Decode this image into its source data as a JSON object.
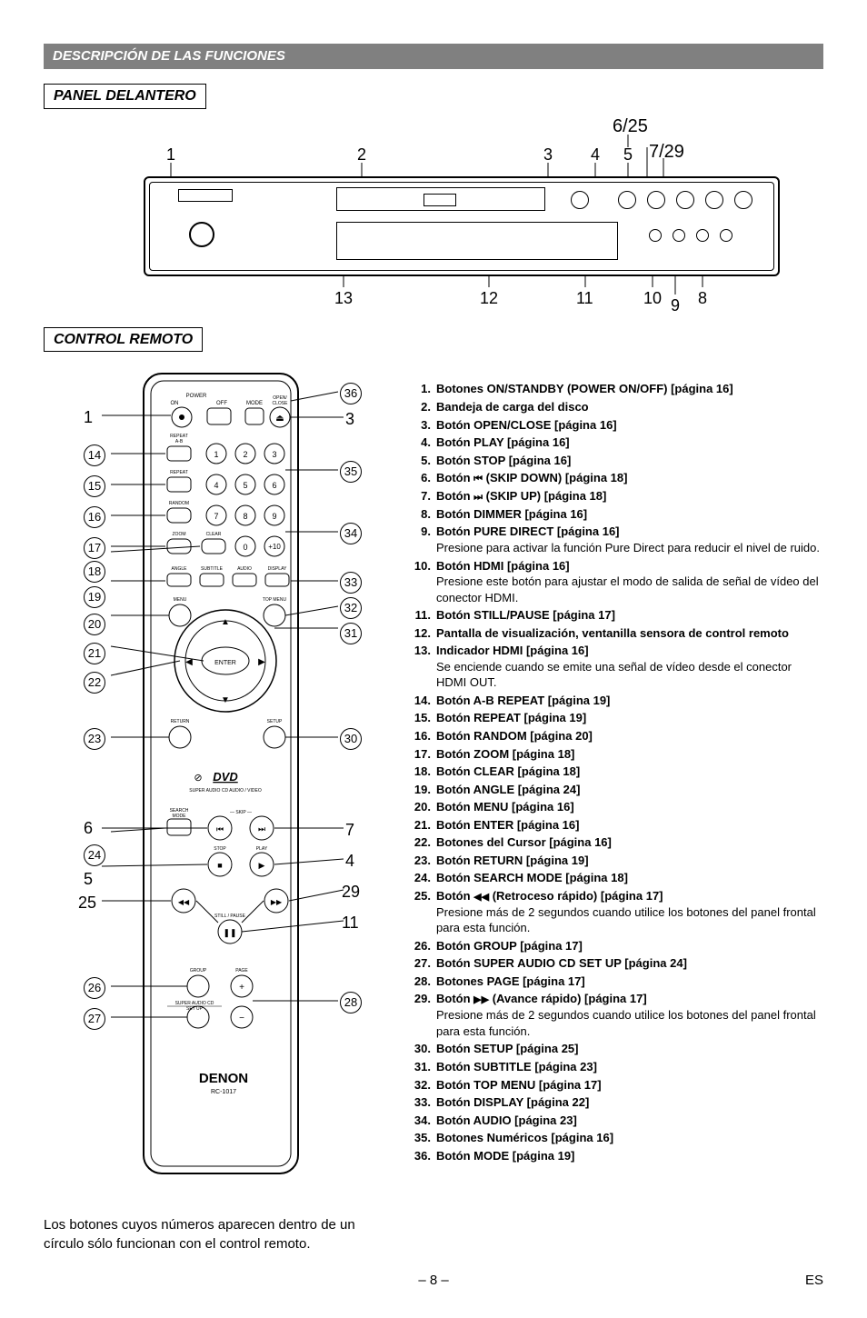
{
  "header": {
    "title": "DESCRIPCIÓN DE LAS FUNCIONES"
  },
  "sections": {
    "front_panel": "PANEL DELANTERO",
    "remote": "CONTROL REMOTO"
  },
  "front_callouts_top": [
    "1",
    "2",
    "3",
    "4",
    "5",
    "6/25",
    "7/29"
  ],
  "front_callouts_bottom": [
    "13",
    "12",
    "11",
    "10",
    "9",
    "8"
  ],
  "remote_left_callouts": [
    "1",
    "14",
    "15",
    "16",
    "17",
    "18",
    "19",
    "20",
    "21",
    "22",
    "23",
    "6",
    "24",
    "5",
    "25",
    "26",
    "27"
  ],
  "remote_right_callouts": [
    "36",
    "3",
    "35",
    "34",
    "33",
    "32",
    "31",
    "30",
    "7",
    "4",
    "29",
    "11",
    "28"
  ],
  "remote_brand": "DENON",
  "remote_model": "RC-1017",
  "note": "Los botones cuyos números aparecen dentro de un círculo sólo funcionan con el control remoto.",
  "functions": [
    {
      "n": "1.",
      "t": "Botones ON/STANDBY (POWER ON/OFF) [página 16]"
    },
    {
      "n": "2.",
      "t": "Bandeja de carga del disco"
    },
    {
      "n": "3.",
      "t": "Botón OPEN/CLOSE [página 16]"
    },
    {
      "n": "4.",
      "t": "Botón PLAY [página 16]"
    },
    {
      "n": "5.",
      "t": "Botón STOP [página 16]"
    },
    {
      "n": "6.",
      "t": "Botón ",
      "icon": "skipdown",
      "t2": " (SKIP DOWN) [página 18]"
    },
    {
      "n": "7.",
      "t": "Botón ",
      "icon": "skipup",
      "t2": " (SKIP UP) [página 18]"
    },
    {
      "n": "8.",
      "t": "Botón DIMMER [página 16]"
    },
    {
      "n": "9.",
      "t": "Botón PURE DIRECT [página 16]",
      "d": "Presione para activar la función Pure Direct para reducir el nivel de ruido."
    },
    {
      "n": "10.",
      "t": "Botón HDMI [página 16]",
      "d": "Presione este botón para ajustar el modo de salida de señal de vídeo del conector HDMI."
    },
    {
      "n": "11.",
      "t": "Botón STILL/PAUSE [página 17]"
    },
    {
      "n": "12.",
      "t": "Pantalla de visualización, ventanilla sensora de control remoto"
    },
    {
      "n": "13.",
      "t": "Indicador HDMI [página 16]",
      "d": "Se enciende cuando se emite una señal de vídeo desde el conector HDMI OUT."
    },
    {
      "n": "14.",
      "t": "Botón A-B REPEAT [página 19]"
    },
    {
      "n": "15.",
      "t": "Botón REPEAT [página 19]"
    },
    {
      "n": "16.",
      "t": "Botón RANDOM [página 20]"
    },
    {
      "n": "17.",
      "t": "Botón ZOOM [página 18]"
    },
    {
      "n": "18.",
      "t": "Botón CLEAR [página 18]"
    },
    {
      "n": "19.",
      "t": "Botón ANGLE [página 24]"
    },
    {
      "n": "20.",
      "t": "Botón MENU [página 16]"
    },
    {
      "n": "21.",
      "t": "Botón ENTER [página 16]"
    },
    {
      "n": "22.",
      "t": "Botones del Cursor [página 16]"
    },
    {
      "n": "23.",
      "t": "Botón RETURN [página 19]"
    },
    {
      "n": "24.",
      "t": "Botón SEARCH MODE [página 18]"
    },
    {
      "n": "25.",
      "t": "Botón ",
      "icon": "rew",
      "t2": " (Retroceso rápido) [página 17]",
      "d": "Presione más de 2 segundos cuando utilice los botones del panel frontal para esta función."
    },
    {
      "n": "26.",
      "t": "Botón GROUP [página 17]"
    },
    {
      "n": "27.",
      "t": "Botón SUPER AUDIO CD SET UP [página 24]"
    },
    {
      "n": "28.",
      "t": "Botones PAGE [página 17]"
    },
    {
      "n": "29.",
      "t": "Botón ",
      "icon": "ff",
      "t2": " (Avance rápido) [página 17]",
      "d": "Presione más de 2 segundos cuando utilice los botones del panel frontal para esta función."
    },
    {
      "n": "30.",
      "t": "Botón SETUP [página 25]"
    },
    {
      "n": "31.",
      "t": "Botón SUBTITLE [página 23]"
    },
    {
      "n": "32.",
      "t": "Botón TOP MENU [página 17]"
    },
    {
      "n": "33.",
      "t": "Botón DISPLAY [página 22]"
    },
    {
      "n": "34.",
      "t": "Botón AUDIO [página 23]"
    },
    {
      "n": "35.",
      "t": "Botones Numéricos [página 16]"
    },
    {
      "n": "36.",
      "t": "Botón MODE [página 19]"
    }
  ],
  "footer": {
    "page": "– 8 –",
    "lang": "ES"
  },
  "remote_labels": {
    "power": "POWER",
    "on": "ON",
    "off": "OFF",
    "mode": "MODE",
    "open": "OPEN /\nCLOSE",
    "ab": "A-B\nREPEAT",
    "repeat": "REPEAT",
    "random": "RANDOM",
    "zoom": "ZOOM",
    "clear": "CLEAR",
    "angle": "ANGLE",
    "subtitle": "SUBTITLE",
    "audio": "AUDIO",
    "display": "DISPLAY",
    "menu": "MENU",
    "topmenu": "TOP MENU",
    "enter": "ENTER",
    "return": "RETURN",
    "setup": "SETUP",
    "search": "SEARCH\nMODE",
    "skip": "SKIP",
    "stop": "STOP",
    "play": "PLAY",
    "still": "STILL / PAUSE",
    "group": "GROUP",
    "page": "PAGE",
    "sacd": "SUPER AUDIO CD\nSET UP",
    "dvd": "DVD"
  }
}
